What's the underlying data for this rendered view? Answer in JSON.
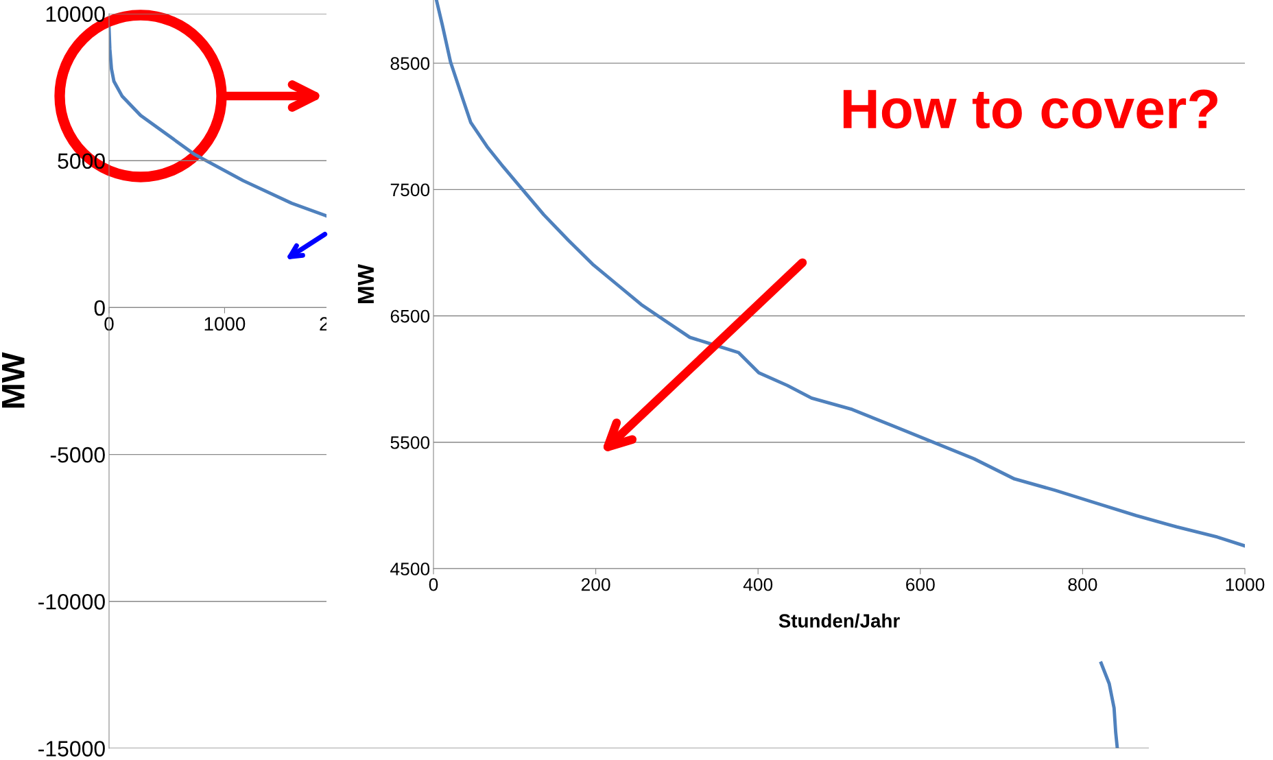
{
  "chart_data": [
    {
      "type": "line",
      "ylabel": "MW",
      "xlim": [
        0,
        9000
      ],
      "ylim": [
        -15000,
        10000
      ],
      "xticks": [
        0,
        1000,
        2000
      ],
      "yticks": [
        -15000,
        -10000,
        -5000,
        0,
        5000,
        10000
      ],
      "grid": "y",
      "series": [
        {
          "color": "#4f81bd",
          "x": [
            0,
            7,
            21,
            42,
            112,
            273,
            741,
            1161,
            1580,
            1874,
            5000,
            8587,
            8657,
            8699,
            8713,
            8727
          ],
          "values": [
            9500,
            8800,
            8120,
            7700,
            7200,
            6540,
            5210,
            4320,
            3550,
            3130,
            null,
            -12100,
            -12800,
            -13630,
            -14460,
            -15000
          ]
        }
      ]
    },
    {
      "type": "line",
      "ylabel": "MW",
      "xlabel": "Stunden/Jahr",
      "xlim": [
        0,
        1000
      ],
      "ylim": [
        4500,
        9000
      ],
      "xticks": [
        0,
        200,
        400,
        600,
        800,
        1000
      ],
      "yticks": [
        4500,
        5500,
        6500,
        7500,
        8500
      ],
      "grid": "y",
      "annotations": [
        "How to cover?"
      ],
      "series": [
        {
          "color": "#4f81bd",
          "x": [
            4,
            11,
            21,
            36,
            46,
            66,
            86,
            111,
            136,
            166,
            196,
            226,
            256,
            286,
            316,
            346,
            376,
            401,
            436,
            466,
            516,
            566,
            616,
            666,
            716,
            766,
            816,
            866,
            916,
            966,
            1000
          ],
          "values": [
            8990,
            8800,
            8510,
            8220,
            8030,
            7840,
            7680,
            7490,
            7300,
            7100,
            6910,
            6750,
            6590,
            6460,
            6330,
            6270,
            6210,
            6050,
            5950,
            5850,
            5760,
            5630,
            5500,
            5370,
            5210,
            5120,
            5020,
            4920,
            4830,
            4750,
            4680
          ]
        }
      ]
    }
  ]
}
